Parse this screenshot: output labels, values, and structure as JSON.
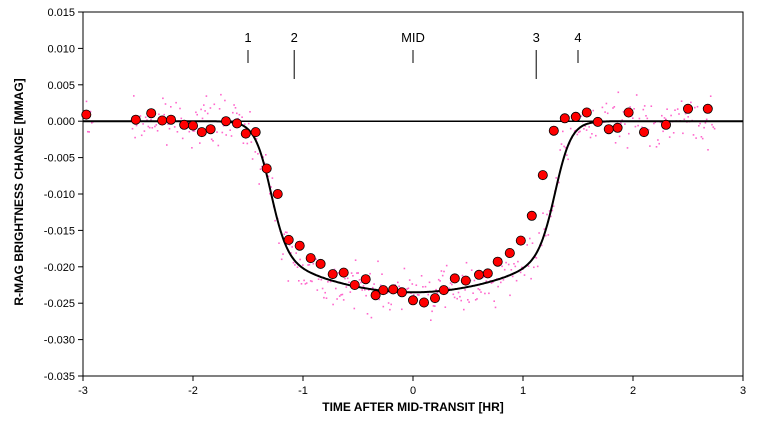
{
  "chart_data": {
    "type": "scatter",
    "title": "",
    "xlabel": "TIME AFTER MID-TRANSIT [HR]",
    "ylabel": "R-MAG BRIGHTNESS CHANGE [MMAG]",
    "xlim": [
      -3,
      3
    ],
    "ylim": [
      -0.035,
      0.015
    ],
    "x_ticks": [
      "-3",
      "-2",
      "-1",
      "0",
      "1",
      "2",
      "3"
    ],
    "y_ticks": [
      "0.015",
      "0.010",
      "0.005",
      "0.000",
      "-0.005",
      "-0.010",
      "-0.015",
      "-0.020",
      "-0.025",
      "-0.030",
      "-0.035"
    ],
    "grid": false,
    "legend": "none",
    "colors": {
      "binned_points": "#ff0000",
      "raw_points": "#ff66cc",
      "model_curve": "#000000",
      "plot_border": "#000000",
      "zero_line": "#000000"
    },
    "contact_markers": [
      {
        "label": "1",
        "x": -1.5
      },
      {
        "label": "2",
        "x": -1.08
      },
      {
        "label": "MID",
        "x": 0.0
      },
      {
        "label": "3",
        "x": 1.12
      },
      {
        "label": "4",
        "x": 1.5
      }
    ],
    "series": [
      {
        "kind": "binned_points",
        "x": [
          -2.97,
          -2.52,
          -2.38,
          -2.28,
          -2.2,
          -2.08,
          -2.0,
          -1.92,
          -1.84,
          -1.7,
          -1.6,
          -1.52,
          -1.43,
          -1.33,
          -1.23,
          -1.13,
          -1.03,
          -0.93,
          -0.84,
          -0.73,
          -0.63,
          -0.53,
          -0.43,
          -0.34,
          -0.27,
          -0.18,
          -0.1,
          0.0,
          0.1,
          0.2,
          0.28,
          0.38,
          0.48,
          0.6,
          0.68,
          0.77,
          0.88,
          0.98,
          1.08,
          1.18,
          1.28,
          1.38,
          1.48,
          1.58,
          1.68,
          1.78,
          1.86,
          1.96,
          2.1,
          2.3,
          2.5,
          2.68
        ],
        "y": [
          0.0009,
          0.0002,
          0.0011,
          0.0001,
          0.0002,
          -0.0005,
          -0.0006,
          -0.0015,
          -0.0011,
          0.0,
          -0.0003,
          -0.0017,
          -0.0015,
          -0.0065,
          -0.01,
          -0.0163,
          -0.0171,
          -0.0188,
          -0.0196,
          -0.021,
          -0.0208,
          -0.0225,
          -0.0217,
          -0.0239,
          -0.0232,
          -0.0231,
          -0.0235,
          -0.0246,
          -0.0249,
          -0.0243,
          -0.0232,
          -0.0216,
          -0.0219,
          -0.0211,
          -0.0209,
          -0.0193,
          -0.0181,
          -0.0164,
          -0.013,
          -0.0074,
          -0.0013,
          0.0004,
          0.0006,
          0.0012,
          -0.0001,
          -0.0011,
          -0.0009,
          0.0012,
          -0.0015,
          -0.0005,
          0.0017,
          0.0017
        ]
      }
    ]
  }
}
